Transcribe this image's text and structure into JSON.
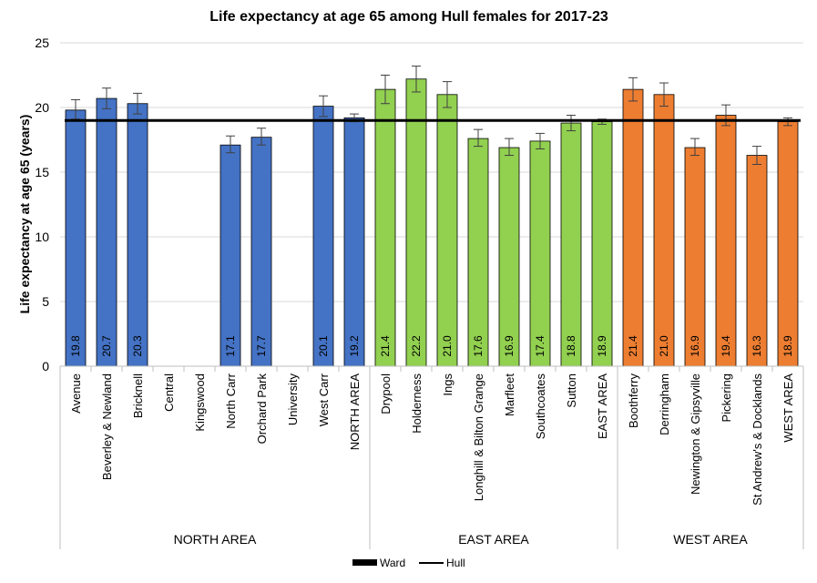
{
  "chart_data": {
    "type": "bar",
    "title": "Life expectancy at age 65 among Hull females for 2017-23",
    "xlabel": "",
    "ylabel": "Life expectancy at age 65 (years)",
    "ylim": [
      0,
      25
    ],
    "yticks": [
      0,
      5,
      10,
      15,
      20,
      25
    ],
    "grid": true,
    "categories": [
      "Avenue",
      "Beverley & Newland",
      "Bricknell",
      "Central",
      "Kingswood",
      "North Carr",
      "Orchard Park",
      "University",
      "West Carr",
      "NORTH AREA",
      "Drypool",
      "Holderness",
      "Ings",
      "Longhill & Bilton Grange",
      "Marfleet",
      "Southcoates",
      "Sutton",
      "EAST AREA",
      "Boothferry",
      "Derringham",
      "Newington & Gipsyville",
      "Pickering",
      "St Andrew's & Docklands",
      "WEST AREA"
    ],
    "values": [
      19.8,
      20.7,
      20.3,
      null,
      null,
      17.1,
      17.7,
      null,
      20.1,
      19.2,
      21.4,
      22.2,
      21.0,
      17.6,
      16.9,
      17.4,
      18.8,
      18.9,
      21.4,
      21.0,
      16.9,
      19.4,
      16.3,
      18.9
    ],
    "value_labels": [
      "19.8",
      "20.7",
      "20.3",
      null,
      null,
      "17.1",
      "17.7",
      null,
      "20.1",
      "19.2",
      "21.4",
      "22.2",
      "21.0",
      "17.6",
      "16.9",
      "17.4",
      "18.8",
      "18.9",
      "21.4",
      "21.0",
      "16.9",
      "19.4",
      "16.3",
      "18.9"
    ],
    "error_low": [
      19.1,
      19.9,
      19.5,
      null,
      null,
      16.5,
      17.1,
      null,
      19.3,
      18.9,
      20.3,
      21.2,
      20.0,
      17.0,
      16.3,
      16.8,
      18.2,
      18.7,
      20.5,
      20.1,
      16.3,
      18.6,
      15.6,
      18.6
    ],
    "error_high": [
      20.6,
      21.5,
      21.1,
      null,
      null,
      17.8,
      18.4,
      null,
      20.9,
      19.5,
      22.5,
      23.2,
      22.0,
      18.3,
      17.6,
      18.0,
      19.4,
      19.1,
      22.3,
      21.9,
      17.6,
      20.2,
      17.0,
      19.2
    ],
    "groups": [
      {
        "name": "NORTH AREA",
        "start": 0,
        "end": 9,
        "color": "#4472c4"
      },
      {
        "name": "EAST AREA",
        "start": 10,
        "end": 17,
        "color": "#92d050"
      },
      {
        "name": "WEST AREA",
        "start": 18,
        "end": 23,
        "color": "#ed7d31"
      }
    ],
    "reference_line": {
      "name": "Hull",
      "value": 19.0
    },
    "legend": [
      {
        "name": "Ward",
        "kind": "bar-key"
      },
      {
        "name": "Hull",
        "kind": "line-key"
      }
    ],
    "legend_position": "bottom"
  }
}
